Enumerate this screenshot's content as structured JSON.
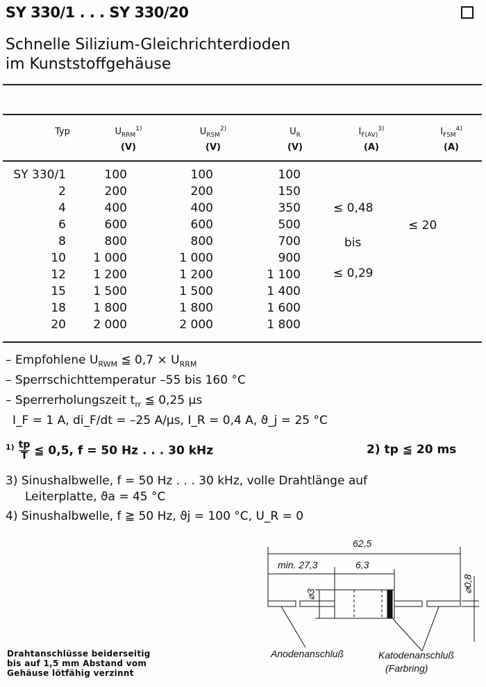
{
  "header": {
    "title": "SY 330/1 . . . SY 330/20",
    "subtitle_line1": "Schnelle Silizium-Gleichrichterdioden",
    "subtitle_line2": "im Kunststoffgehäuse"
  },
  "table": {
    "columns": [
      {
        "main": "Typ",
        "sub": "",
        "sup": "",
        "unit": ""
      },
      {
        "main": "U",
        "sub": "RRM",
        "sup": "1)",
        "unit": "(V)"
      },
      {
        "main": "U",
        "sub": "RSM",
        "sup": "2)",
        "unit": "(V)"
      },
      {
        "main": "U",
        "sub": "R",
        "sup": "",
        "unit": "(V)"
      },
      {
        "main": "I",
        "sub": "F(AV)",
        "sup": "3)",
        "unit": "(A)"
      },
      {
        "main": "I",
        "sub": "FSM",
        "sup": "4)",
        "unit": "(A)"
      }
    ],
    "rows": [
      [
        "SY 330/1",
        "100",
        "100",
        "100"
      ],
      [
        "2",
        "200",
        "200",
        "150"
      ],
      [
        "4",
        "400",
        "400",
        "350"
      ],
      [
        "6",
        "600",
        "600",
        "500"
      ],
      [
        "8",
        "800",
        "800",
        "700"
      ],
      [
        "10",
        "1 000",
        "1 000",
        "900"
      ],
      [
        "12",
        "1 200",
        "1 200",
        "1 100"
      ],
      [
        "15",
        "1 500",
        "1 500",
        "1 400"
      ],
      [
        "18",
        "1 800",
        "1 800",
        "1 600"
      ],
      [
        "20",
        "2 000",
        "2 000",
        "1 800"
      ]
    ],
    "if_av": {
      "upper": "≤ 0,48",
      "mid": "bis",
      "lower": "≤ 0,29"
    },
    "ifsm": "≤ 20"
  },
  "notes": {
    "n1": "– Empfohlene U",
    "n1_sub": "RWM",
    "n1_rest": " ≦ 0,7 × U",
    "n1_sub2": "RRM",
    "n2": "– Sperrschichttemperatur –55 bis 160 °C",
    "n3": "– Sperrerholungszeit t",
    "n3_sub": "rr",
    "n3_rest": " ≦ 0,25 µs",
    "n4": "I_F = 1 A, di_F/dt = –25 A/µs, I_R = 0,4 A, ϑ_j = 25 °C",
    "f1_mark": "1)",
    "f1_num": "tp",
    "f1_den": "T",
    "f1_text": "≦ 0,5, f = 50 Hz . . . 30 kHz",
    "f2": "2) tp ≦ 20 ms",
    "f3_line1": "3) Sinushalbwelle, f = 50 Hz . . . 30 kHz, volle Drahtlänge auf",
    "f3_line2": "Leiterplatte, ϑa = 45 °C",
    "f4": "4) Sinushalbwelle, f ≧ 50 Hz, ϑj = 100 °C, U_R = 0"
  },
  "drawing": {
    "total": "62,5",
    "lead": "min. 27,3",
    "body": "6,3",
    "dia_body": "⌀3",
    "dia_lead": "⌀0,8",
    "anode": "Anodenanschluß",
    "cathode_line1": "Katodenanschluß",
    "cathode_line2": "(Farbring)"
  },
  "lead_note": {
    "line1": "Drahtanschlüsse beiderseitig",
    "line2": "bis auf 1,5 mm Abstand vom",
    "line3": "Gehäuse lötfähig verzinnt"
  }
}
